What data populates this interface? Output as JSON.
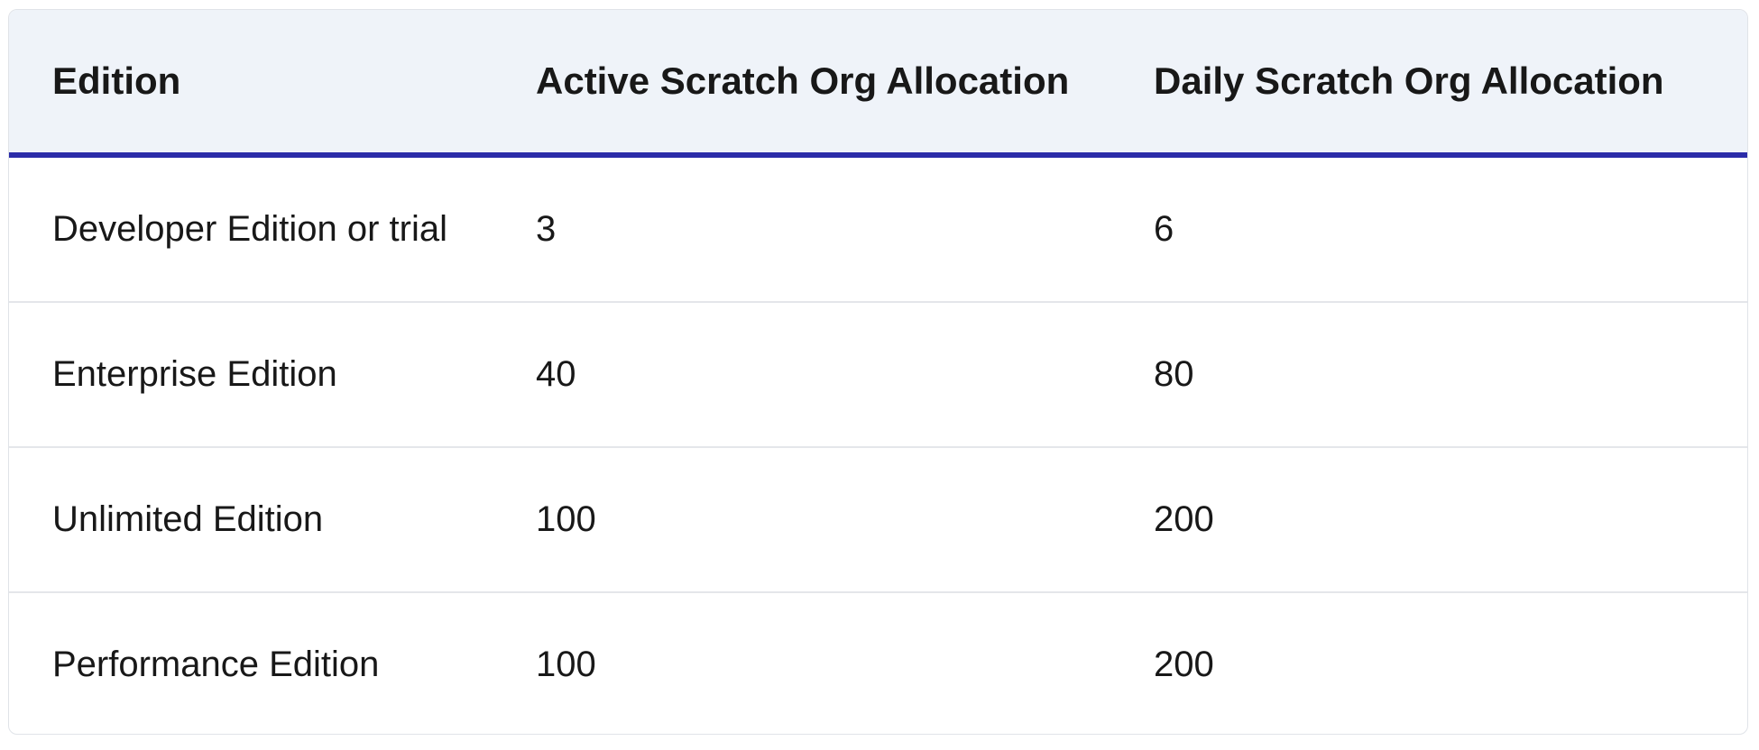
{
  "table": {
    "headers": [
      "Edition",
      "Active Scratch Org Allocation",
      "Daily Scratch Org Allocation"
    ],
    "rows": [
      [
        "Developer Edition or trial",
        "3",
        "6"
      ],
      [
        "Enterprise Edition",
        "40",
        "80"
      ],
      [
        "Unlimited Edition",
        "100",
        "200"
      ],
      [
        "Performance Edition",
        "100",
        "200"
      ]
    ]
  },
  "colors": {
    "header_background": "#eff3f9",
    "header_rule": "#2b2ca8",
    "row_divider": "#e4e6ea",
    "text": "#181818"
  }
}
